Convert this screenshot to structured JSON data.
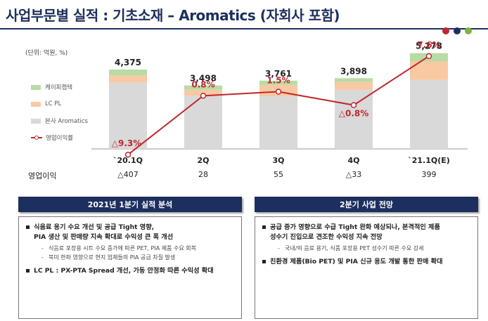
{
  "title": "사업부문별 실적 : 기초소재 – Aromatics (자회사 포함)",
  "unit": "(단위: 억원, %)",
  "brand_colors": [
    "#c0272d",
    "#1c2f5e",
    "#7cb342"
  ],
  "legend": {
    "items": [
      {
        "label": "케이피켐텍",
        "color": "#b9dba5"
      },
      {
        "label": "LC PL",
        "color": "#f8c9a3"
      },
      {
        "label": "본사 Aromatics",
        "color": "#d9d9d9"
      },
      {
        "label": "영업이익률",
        "color": "#c0272d"
      }
    ]
  },
  "chart_data": {
    "type": "bar",
    "categories": [
      "`20.1Q",
      "2Q",
      "3Q",
      "4Q",
      "`21.1Q(E)"
    ],
    "stacked": true,
    "series": [
      {
        "name": "본사 Aromatics",
        "values": [
          3650,
          2930,
          2900,
          3260,
          3800
        ],
        "color": "#d9d9d9"
      },
      {
        "name": "LC PL",
        "values": [
          400,
          330,
          630,
          430,
          1020
        ],
        "color": "#f8c9a3"
      },
      {
        "name": "케이피켐텍",
        "values": [
          325,
          238,
          231,
          208,
          458
        ],
        "color": "#b9dba5"
      }
    ],
    "totals": [
      4375,
      3498,
      3761,
      3898,
      5278
    ],
    "total_labels": [
      "4,375",
      "3,498",
      "3,761",
      "3,898",
      "5,278"
    ],
    "margin_series": {
      "name": "영업이익률",
      "values": [
        -9.3,
        0.8,
        1.5,
        -0.8,
        7.6
      ],
      "labels": [
        "△9.3%",
        "0.8%",
        "1.5%",
        "△0.8%",
        "7.6%"
      ],
      "color": "#c0272d"
    },
    "ylim": [
      0,
      6000
    ],
    "margin_ylim": [
      -10,
      10
    ],
    "grid": false,
    "legend_position": "left"
  },
  "operating_profit": {
    "label": "영업이익",
    "values": [
      "△407",
      "28",
      "55",
      "△33",
      "399"
    ]
  },
  "panels": [
    {
      "header": "2021년 1분기 실적 분석",
      "bullets": [
        {
          "text": "식음료 용기 수요 개선 및 공급 Tight 영향,",
          "cont": "PIA 생산 및 판매량 지속 확대로 수익성 큰 폭 개선",
          "subs": [
            "식음료 포장용 시트 수요 증가에 따른 PET, PIA 제품 수요 회복",
            "북미 한파 영향으로 현지 업체들의 PIA 공급 차질 발생"
          ]
        },
        {
          "text": "LC PL : PX-PTA Spread 개선, 가동 안정화 따른 수익성 확대",
          "cont": "",
          "subs": []
        }
      ]
    },
    {
      "header": "2분기 사업 전망",
      "bullets": [
        {
          "text": "공급 증가 영향으로 수급 Tight 완화 예상되나, 본격적인 제품",
          "cont": "성수기 진입으로 견조한 수익성 지속 전망",
          "subs": [
            "국내/외 음료 용기, 식품 포장용 PET 성수기 따른 수요 강세"
          ]
        },
        {
          "text": "친환경 제품(Bio PET) 및 PIA 신규 용도 개발 통한 판매 확대",
          "cont": "",
          "subs": []
        }
      ]
    }
  ]
}
